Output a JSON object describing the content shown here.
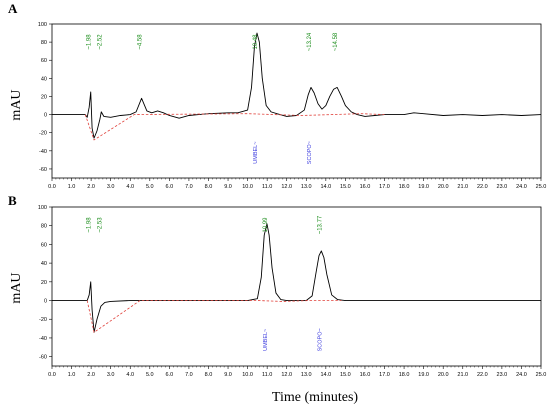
{
  "figure": {
    "x_axis_title": "Time (minutes)"
  },
  "chart_data": [
    {
      "type": "line",
      "panel": "A",
      "ylabel": "mAU",
      "xlabel": "",
      "xlim": [
        0,
        25
      ],
      "ylim": [
        -70,
        100
      ],
      "x_ticks": [
        "0.0",
        "1.0",
        "2.0",
        "3.0",
        "4.0",
        "5.0",
        "6.0",
        "7.0",
        "8.0",
        "9.0",
        "10.0",
        "11.0",
        "12.0",
        "13.0",
        "14.0",
        "15.0",
        "16.0",
        "17.0",
        "18.0",
        "19.0",
        "20.0",
        "21.0",
        "22.0",
        "23.0",
        "24.0",
        "25.0"
      ],
      "y_ticks": [
        "100",
        "80",
        "60",
        "40",
        "20",
        "0",
        "-20",
        "-40",
        "-60"
      ],
      "peak_labels": [
        {
          "time": 1.98,
          "text": "~1.98"
        },
        {
          "time": 2.52,
          "text": "~2.52"
        },
        {
          "time": 4.58,
          "text": "~4.58"
        },
        {
          "time": 10.48,
          "text": "10.48"
        },
        {
          "time": 13.24,
          "text": "~13.24"
        },
        {
          "time": 14.58,
          "text": "~14.58"
        }
      ],
      "compound_labels": [
        {
          "time": 10.48,
          "text": "UMBEL~"
        },
        {
          "time": 13.24,
          "text": "SCOPO~"
        }
      ],
      "series": [
        {
          "values": [
            [
              0,
              0
            ],
            [
              1,
              0
            ],
            [
              1.7,
              0
            ],
            [
              1.8,
              -3
            ],
            [
              1.9,
              8
            ],
            [
              1.98,
              25
            ],
            [
              2.05,
              -15
            ],
            [
              2.15,
              -26
            ],
            [
              2.3,
              -18
            ],
            [
              2.45,
              -5
            ],
            [
              2.52,
              3
            ],
            [
              2.65,
              -2
            ],
            [
              3,
              -3
            ],
            [
              3.5,
              -1
            ],
            [
              4,
              0
            ],
            [
              4.3,
              3
            ],
            [
              4.58,
              18
            ],
            [
              4.85,
              4
            ],
            [
              5.1,
              2
            ],
            [
              5.4,
              4
            ],
            [
              5.7,
              2
            ],
            [
              6,
              -1
            ],
            [
              6.5,
              -4
            ],
            [
              7,
              -1
            ],
            [
              7.5,
              0
            ],
            [
              8,
              1
            ],
            [
              9,
              2
            ],
            [
              9.5,
              2
            ],
            [
              10,
              5
            ],
            [
              10.2,
              30
            ],
            [
              10.35,
              75
            ],
            [
              10.48,
              90
            ],
            [
              10.6,
              80
            ],
            [
              10.75,
              40
            ],
            [
              10.95,
              10
            ],
            [
              11.2,
              3
            ],
            [
              11.5,
              1
            ],
            [
              12,
              -2
            ],
            [
              12.5,
              -1
            ],
            [
              12.9,
              5
            ],
            [
              13.1,
              22
            ],
            [
              13.24,
              30
            ],
            [
              13.4,
              24
            ],
            [
              13.6,
              12
            ],
            [
              13.8,
              6
            ],
            [
              14,
              10
            ],
            [
              14.2,
              20
            ],
            [
              14.4,
              28
            ],
            [
              14.58,
              30
            ],
            [
              14.8,
              20
            ],
            [
              15,
              10
            ],
            [
              15.3,
              3
            ],
            [
              15.6,
              0
            ],
            [
              16,
              -2
            ],
            [
              16.5,
              -1
            ],
            [
              17,
              0
            ],
            [
              18,
              0
            ],
            [
              18.5,
              2
            ],
            [
              19,
              1
            ],
            [
              20,
              -1
            ],
            [
              21,
              0
            ],
            [
              22,
              -1
            ],
            [
              23,
              0
            ],
            [
              24,
              -1
            ],
            [
              25,
              0
            ]
          ]
        },
        {
          "values": [
            [
              1.7,
              0
            ],
            [
              2.15,
              -28
            ],
            [
              4.2,
              0
            ],
            [
              10,
              1
            ],
            [
              12.8,
              -1
            ],
            [
              15.8,
              1
            ],
            [
              17,
              0
            ]
          ]
        }
      ]
    },
    {
      "type": "line",
      "panel": "B",
      "ylabel": "mAU",
      "xlabel": "",
      "xlim": [
        0,
        25
      ],
      "ylim": [
        -70,
        100
      ],
      "x_ticks": [
        "0.0",
        "1.0",
        "2.0",
        "3.0",
        "4.0",
        "5.0",
        "6.0",
        "7.0",
        "8.0",
        "9.0",
        "10.0",
        "11.0",
        "12.0",
        "13.0",
        "14.0",
        "15.0",
        "16.0",
        "17.0",
        "18.0",
        "19.0",
        "20.0",
        "21.0",
        "22.0",
        "23.0",
        "24.0",
        "25.0"
      ],
      "y_ticks": [
        "100",
        "80",
        "60",
        "40",
        "20",
        "0",
        "-20",
        "-40",
        "-60"
      ],
      "peak_labels": [
        {
          "time": 1.98,
          "text": "~1.98"
        },
        {
          "time": 2.53,
          "text": "~2.53"
        },
        {
          "time": 10.99,
          "text": "10.99"
        },
        {
          "time": 13.77,
          "text": "~13.77"
        }
      ],
      "compound_labels": [
        {
          "time": 10.99,
          "text": "UMBEL~"
        },
        {
          "time": 13.77,
          "text": "SCOPO~"
        }
      ],
      "series": [
        {
          "values": [
            [
              0,
              0
            ],
            [
              1,
              0
            ],
            [
              1.8,
              0
            ],
            [
              1.9,
              6
            ],
            [
              1.98,
              20
            ],
            [
              2.05,
              -10
            ],
            [
              2.15,
              -34
            ],
            [
              2.3,
              -20
            ],
            [
              2.5,
              -6
            ],
            [
              2.7,
              -2
            ],
            [
              3,
              -1
            ],
            [
              4,
              0
            ],
            [
              5,
              0
            ],
            [
              6,
              0
            ],
            [
              7,
              0
            ],
            [
              8,
              0
            ],
            [
              9,
              0
            ],
            [
              10,
              0
            ],
            [
              10.5,
              2
            ],
            [
              10.7,
              25
            ],
            [
              10.85,
              70
            ],
            [
              10.99,
              82
            ],
            [
              11.1,
              70
            ],
            [
              11.25,
              35
            ],
            [
              11.45,
              8
            ],
            [
              11.7,
              1
            ],
            [
              12,
              0
            ],
            [
              13,
              0
            ],
            [
              13.3,
              5
            ],
            [
              13.5,
              30
            ],
            [
              13.65,
              48
            ],
            [
              13.77,
              53
            ],
            [
              13.9,
              46
            ],
            [
              14.05,
              28
            ],
            [
              14.3,
              6
            ],
            [
              14.6,
              1
            ],
            [
              15,
              0
            ],
            [
              16,
              0
            ],
            [
              17,
              0
            ],
            [
              18,
              0
            ],
            [
              19,
              0
            ],
            [
              20,
              0
            ],
            [
              21,
              0
            ],
            [
              22,
              0
            ],
            [
              23,
              0
            ],
            [
              24,
              0
            ],
            [
              25,
              0
            ]
          ]
        },
        {
          "values": [
            [
              1.8,
              0
            ],
            [
              2.15,
              -34
            ],
            [
              4.5,
              0
            ],
            [
              10.5,
              0
            ],
            [
              11.8,
              -1
            ],
            [
              13.2,
              0
            ],
            [
              14.8,
              0
            ]
          ]
        }
      ]
    }
  ]
}
